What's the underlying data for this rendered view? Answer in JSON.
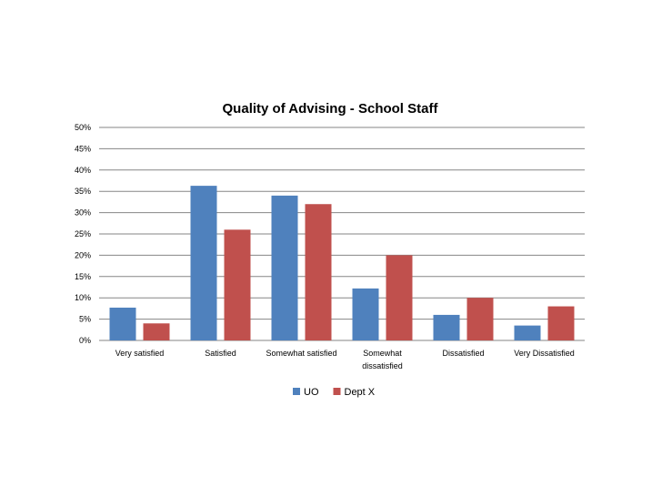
{
  "chart_data": {
    "type": "bar",
    "title": "Quality of Advising - School Staff",
    "categories": [
      [
        "Very satisfied"
      ],
      [
        "Satisfied"
      ],
      [
        "Somewhat satisfied"
      ],
      [
        "Somewhat",
        "dissatisfied"
      ],
      [
        "Dissatisfied"
      ],
      [
        "Very Dissatisfied"
      ]
    ],
    "series": [
      {
        "name": "UO",
        "color": "#4f81bd",
        "values": [
          7.7,
          36.3,
          34.0,
          12.2,
          6.0,
          3.5
        ]
      },
      {
        "name": "Dept X",
        "color": "#c0504d",
        "values": [
          4.0,
          26.0,
          32.0,
          20.0,
          10.0,
          8.0
        ]
      }
    ],
    "ylim": [
      0,
      50
    ],
    "yticks": [
      0,
      5,
      10,
      15,
      20,
      25,
      30,
      35,
      40,
      45,
      50
    ],
    "ytick_labels": [
      "0%",
      "5%",
      "10%",
      "15%",
      "20%",
      "25%",
      "30%",
      "35%",
      "40%",
      "45%",
      "50%"
    ],
    "grid": true,
    "legend": "bottom",
    "gridline_color": "#868686"
  }
}
